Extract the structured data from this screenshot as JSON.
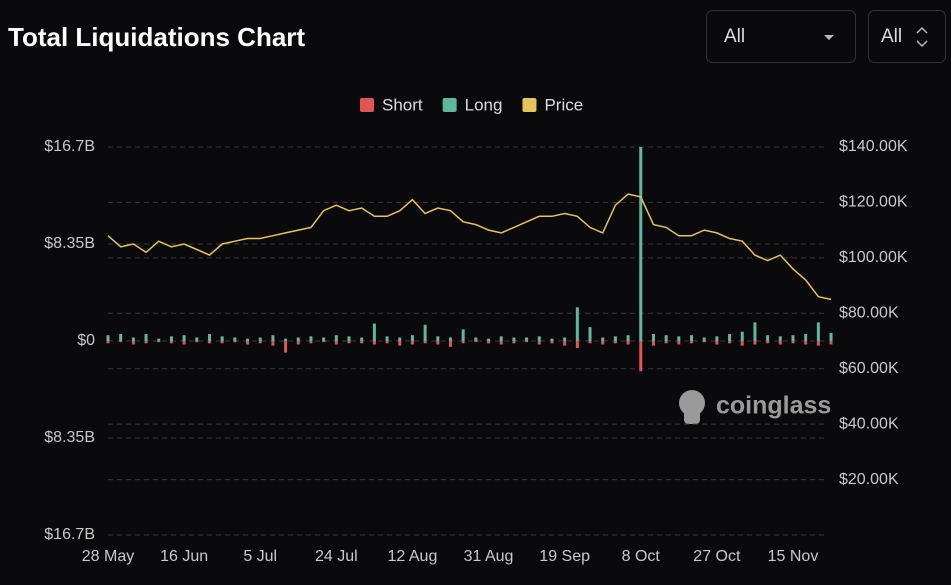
{
  "header": {
    "title": "Total Liquidations Chart",
    "controls": [
      "All",
      "All"
    ]
  },
  "watermark": "coinglass",
  "chart_data": {
    "type": "bar-line",
    "categories": [
      "28 May",
      null,
      null,
      null,
      null,
      null,
      "16 Jun",
      null,
      null,
      null,
      null,
      null,
      "5 Jul",
      null,
      null,
      null,
      null,
      null,
      "24 Jul",
      null,
      null,
      null,
      null,
      null,
      "12 Aug",
      null,
      null,
      null,
      null,
      null,
      "31 Aug",
      null,
      null,
      null,
      null,
      null,
      "19 Sep",
      null,
      null,
      null,
      null,
      null,
      "8 Oct",
      null,
      null,
      null,
      null,
      null,
      "27 Oct",
      null,
      null,
      null,
      null,
      null,
      "15 Nov",
      null,
      null,
      null
    ],
    "series": [
      {
        "name": "Short",
        "color": "#e05555",
        "values": [
          -0.2,
          -0.1,
          -0.3,
          -0.2,
          -0.1,
          -0.2,
          -0.3,
          -0.1,
          -0.2,
          -0.2,
          -0.1,
          -0.3,
          -0.2,
          -0.4,
          -1.0,
          -0.3,
          -0.2,
          -0.1,
          -0.3,
          -0.2,
          -0.2,
          -0.3,
          -0.2,
          -0.4,
          -0.3,
          -0.2,
          -0.3,
          -0.5,
          -0.2,
          -0.1,
          -0.2,
          -0.3,
          -0.2,
          -0.1,
          -0.3,
          -0.2,
          -0.4,
          -0.6,
          -0.2,
          -0.3,
          -0.2,
          -0.3,
          -2.6,
          -0.4,
          -0.2,
          -0.3,
          -0.2,
          -0.1,
          -0.3,
          -0.2,
          -0.4,
          -0.3,
          -0.2,
          -0.3,
          -0.2,
          -0.3,
          -0.4,
          -0.3
        ]
      },
      {
        "name": "Long",
        "color": "#5fb89c",
        "values": [
          0.5,
          0.6,
          0.3,
          0.6,
          0.2,
          0.4,
          0.5,
          0.3,
          0.6,
          0.4,
          0.3,
          0.2,
          0.3,
          0.5,
          0.2,
          0.3,
          0.4,
          0.3,
          0.5,
          0.4,
          0.3,
          1.5,
          0.4,
          0.3,
          0.5,
          1.4,
          0.4,
          0.3,
          1.0,
          0.3,
          0.2,
          0.4,
          0.3,
          0.3,
          0.4,
          0.2,
          0.3,
          2.9,
          1.2,
          0.3,
          0.4,
          0.5,
          16.7,
          0.6,
          0.5,
          0.4,
          0.5,
          0.3,
          0.4,
          0.6,
          0.8,
          1.6,
          0.5,
          0.4,
          0.5,
          0.6,
          1.6,
          0.7
        ]
      },
      {
        "name": "Price",
        "color": "#e6c35c",
        "axis": "y2",
        "values": [
          108000,
          104000,
          105000,
          102000,
          106000,
          104000,
          105000,
          103000,
          101000,
          105000,
          106000,
          107000,
          107000,
          108000,
          109000,
          110000,
          111000,
          117000,
          119000,
          117000,
          118000,
          115000,
          115000,
          117000,
          121000,
          116000,
          118000,
          117000,
          113000,
          112000,
          110000,
          109000,
          111000,
          113000,
          115000,
          115000,
          116000,
          115000,
          111000,
          109000,
          119000,
          123000,
          122000,
          112000,
          111000,
          108000,
          108000,
          110000,
          109000,
          107000,
          106000,
          101000,
          99000,
          101000,
          96000,
          92000,
          86000,
          85000
        ]
      }
    ],
    "ylim": [
      -16.7,
      16.7
    ],
    "yticks": [
      {
        "value": 16.7,
        "label": "$16.7B"
      },
      {
        "value": 8.35,
        "label": "$8.35B"
      },
      {
        "value": 0,
        "label": "$0"
      },
      {
        "value": -8.35,
        "label": "$8.35B"
      },
      {
        "value": -16.7,
        "label": "$16.7B"
      }
    ],
    "y2lim": [
      0,
      140000
    ],
    "y2ticks": [
      {
        "value": 140000,
        "label": "$140.00K"
      },
      {
        "value": 120000,
        "label": "$120.00K"
      },
      {
        "value": 100000,
        "label": "$100.00K"
      },
      {
        "value": 80000,
        "label": "$80.00K"
      },
      {
        "value": 60000,
        "label": "$60.00K"
      },
      {
        "value": 40000,
        "label": "$40.00K"
      },
      {
        "value": 20000,
        "label": "$20.00K"
      }
    ],
    "grid": true
  }
}
